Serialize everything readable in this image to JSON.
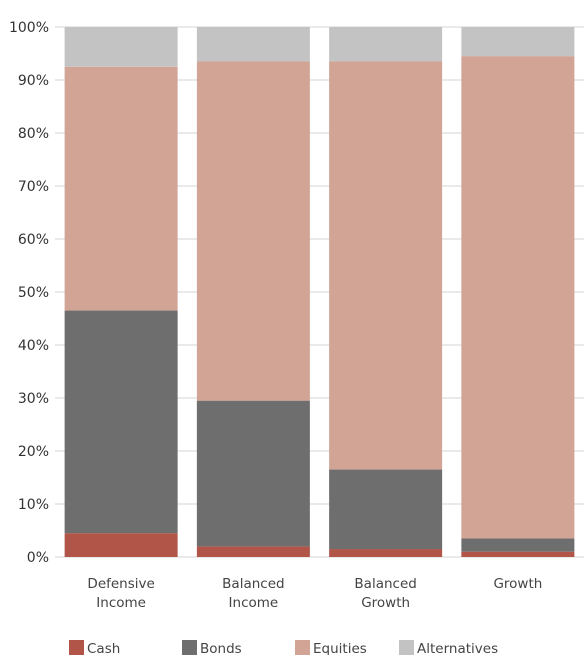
{
  "chart_data": {
    "type": "bar",
    "stacked": true,
    "percent": true,
    "categories": [
      [
        "Defensive",
        "Income"
      ],
      [
        "Balanced",
        "Income"
      ],
      [
        "Balanced",
        "Growth"
      ],
      [
        "Growth"
      ]
    ],
    "series": [
      {
        "name": "Cash",
        "color": "#b05548",
        "values": [
          4.5,
          2.0,
          1.5,
          1.0
        ]
      },
      {
        "name": "Bonds",
        "color": "#6e6e6e",
        "values": [
          42.0,
          27.5,
          15.0,
          2.5
        ]
      },
      {
        "name": "Equities",
        "color": "#d1a496",
        "values": [
          46.0,
          64.0,
          77.0,
          91.0
        ]
      },
      {
        "name": "Alternatives",
        "color": "#c3c3c3",
        "values": [
          7.5,
          6.5,
          6.5,
          5.5
        ]
      }
    ],
    "yticks": [
      "0%",
      "10%",
      "20%",
      "30%",
      "40%",
      "50%",
      "60%",
      "70%",
      "80%",
      "90%",
      "100%"
    ],
    "ylim": [
      0,
      100
    ],
    "grid": true,
    "legend_position": "bottom"
  }
}
